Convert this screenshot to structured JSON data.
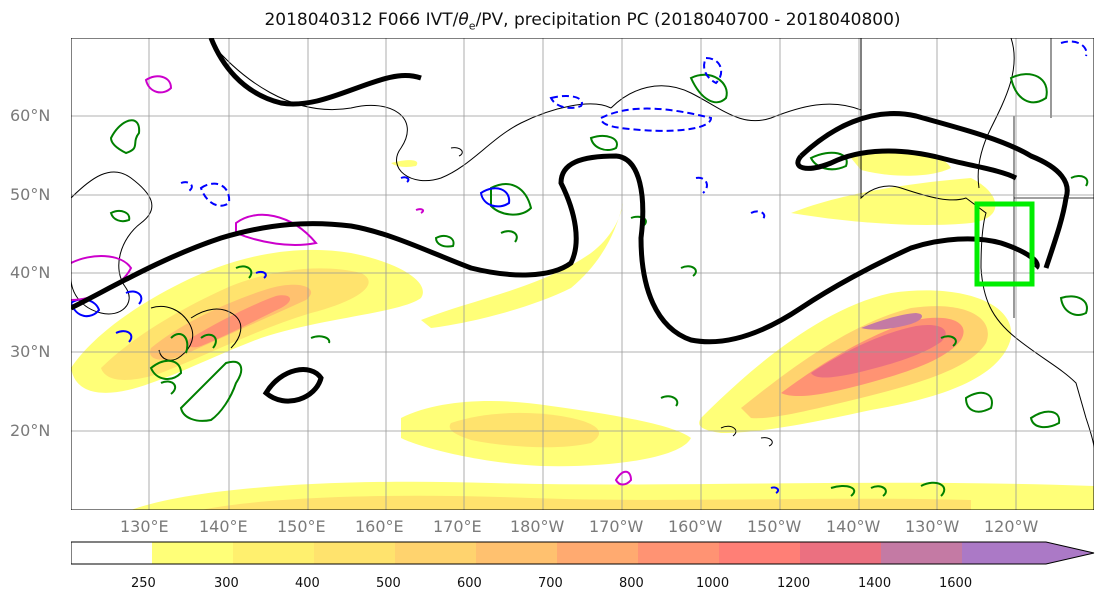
{
  "title": {
    "prefix": "2018040312 F066 IVT/",
    "theta": "θ",
    "theta_sub": "e",
    "suffix": "/PV, precipitation PC (2018040700 - 2018040800)"
  },
  "lat_labels": [
    "60°N",
    "50°N",
    "40°N",
    "30°N",
    "20°N"
  ],
  "lon_labels": [
    "130°E",
    "140°E",
    "150°E",
    "160°E",
    "170°E",
    "180°W",
    "170°W",
    "160°W",
    "150°W",
    "140°W",
    "130°W",
    "120°W"
  ],
  "colorbar": {
    "ticks": [
      "250",
      "300",
      "400",
      "500",
      "600",
      "700",
      "800",
      "1000",
      "1200",
      "1400",
      "1600"
    ],
    "colors": [
      "#ffff78",
      "#fff06e",
      "#ffe36d",
      "#ffd36e",
      "#ffc16f",
      "#ffaa70",
      "#ff9373",
      "#ff7f76",
      "#eb7080",
      "#c47aa4",
      "#ab79c6"
    ]
  },
  "colors": {
    "pv_contour": "#000000",
    "target_box": "#00ee00",
    "precip_pos": "#008000",
    "precip_neg": "#0000ff",
    "theta_e": "#cc00cc"
  }
}
